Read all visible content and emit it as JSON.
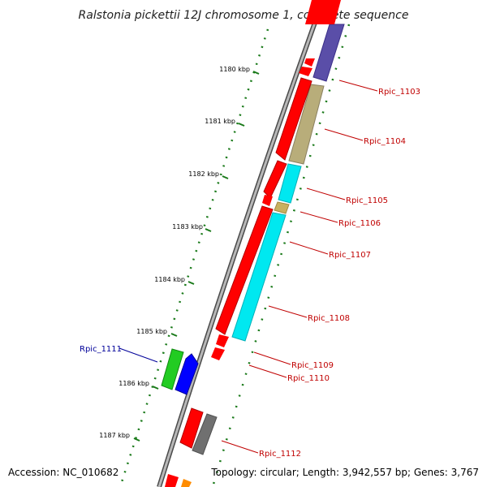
{
  "title": "Ralstonia pickettii 12J chromosome 1, complete sequence",
  "footer": {
    "accession": "Accession: NC_010682",
    "summary": "Topology: circular; Length: 3,942,557 bp; Genes: 3,767"
  },
  "kbp_ticks": [
    "1180 kbp",
    "1181 kbp",
    "1182 kbp",
    "1183 kbp",
    "1184 kbp",
    "1185 kbp",
    "1186 kbp",
    "1187 kbp"
  ],
  "genes": [
    {
      "label": "Rpic_1103",
      "color": "#c00000",
      "feature_color": "#5a4ea8"
    },
    {
      "label": "Rpic_1104",
      "color": "#c00000",
      "feature_color": "#b8ad7a"
    },
    {
      "label": "Rpic_1105",
      "color": "#c00000",
      "feature_color": "#00e8f0"
    },
    {
      "label": "Rpic_1106",
      "color": "#c00000",
      "feature_color": "#c8b060"
    },
    {
      "label": "Rpic_1107",
      "color": "#c00000",
      "feature_color": "#00e8f0"
    },
    {
      "label": "Rpic_1108",
      "color": "#c00000",
      "feature_color": "#00e8f0"
    },
    {
      "label": "Rpic_1109",
      "color": "#c00000",
      "feature_color": "#ff0000"
    },
    {
      "label": "Rpic_1110",
      "color": "#c00000",
      "feature_color": "#ff0000"
    },
    {
      "label": "Rpic_1111",
      "color": "#000099",
      "feature_color": "#22cc22"
    },
    {
      "label": "Rpic_1112",
      "color": "#c00000",
      "feature_color": "#777777"
    }
  ],
  "colors": {
    "cds_forward": "#ff0000",
    "cds_reverse": "#0000ff",
    "backbone": "#8a8a8a",
    "ticks": "#1a7a1a"
  }
}
